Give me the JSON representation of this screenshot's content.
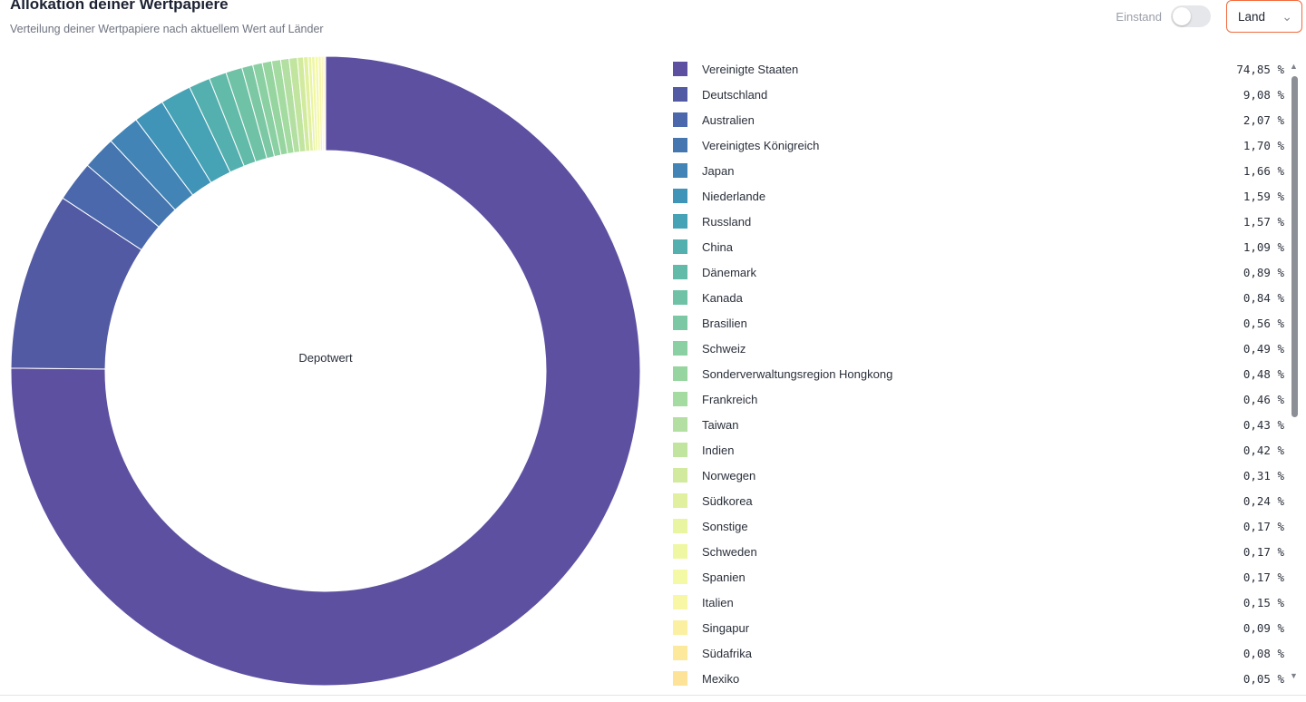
{
  "header": {
    "title": "Allokation deiner Wertpapiere",
    "subtitle": "Verteilung deiner Wertpapiere nach aktuellem Wert auf Länder"
  },
  "controls": {
    "toggle_label": "Einstand",
    "select_value": "Land"
  },
  "chart_data": {
    "type": "pie",
    "style": "donut",
    "center_label": "Depotwert",
    "unit": "%",
    "categories": [
      "Vereinigte Staaten",
      "Deutschland",
      "Australien",
      "Vereinigtes Königreich",
      "Japan",
      "Niederlande",
      "Russland",
      "China",
      "Dänemark",
      "Kanada",
      "Brasilien",
      "Schweiz",
      "Sonderverwaltungsregion Hongkong",
      "Frankreich",
      "Taiwan",
      "Indien",
      "Norwegen",
      "Südkorea",
      "Sonstige",
      "Schweden",
      "Spanien",
      "Italien",
      "Singapur",
      "Südafrika",
      "Mexiko"
    ],
    "values": [
      74.85,
      9.08,
      2.07,
      1.7,
      1.66,
      1.59,
      1.57,
      1.09,
      0.89,
      0.84,
      0.56,
      0.49,
      0.48,
      0.46,
      0.43,
      0.42,
      0.31,
      0.24,
      0.17,
      0.17,
      0.17,
      0.15,
      0.09,
      0.08,
      0.05
    ],
    "value_labels": [
      "74,85 %",
      "9,08 %",
      "2,07 %",
      "1,70 %",
      "1,66 %",
      "1,59 %",
      "1,57 %",
      "1,09 %",
      "0,89 %",
      "0,84 %",
      "0,56 %",
      "0,49 %",
      "0,48 %",
      "0,46 %",
      "0,43 %",
      "0,42 %",
      "0,31 %",
      "0,24 %",
      "0,17 %",
      "0,17 %",
      "0,17 %",
      "0,15 %",
      "0,09 %",
      "0,08 %",
      "0,05 %"
    ],
    "colors": [
      "#5e50a1",
      "#525aa3",
      "#4a68ab",
      "#4576b0",
      "#4184b5",
      "#3f94b8",
      "#46a2b5",
      "#54b0ae",
      "#62baa9",
      "#70c2a6",
      "#7dc8a4",
      "#8ad0a3",
      "#96d59f",
      "#a4dba0",
      "#b3e0a2",
      "#c1e59f",
      "#d2ea9d",
      "#e0f09f",
      "#e9f5a0",
      "#eff7a2",
      "#f4f9a6",
      "#f8f7a6",
      "#fbf0a1",
      "#fce99c",
      "#fde397"
    ],
    "legend": "right"
  }
}
